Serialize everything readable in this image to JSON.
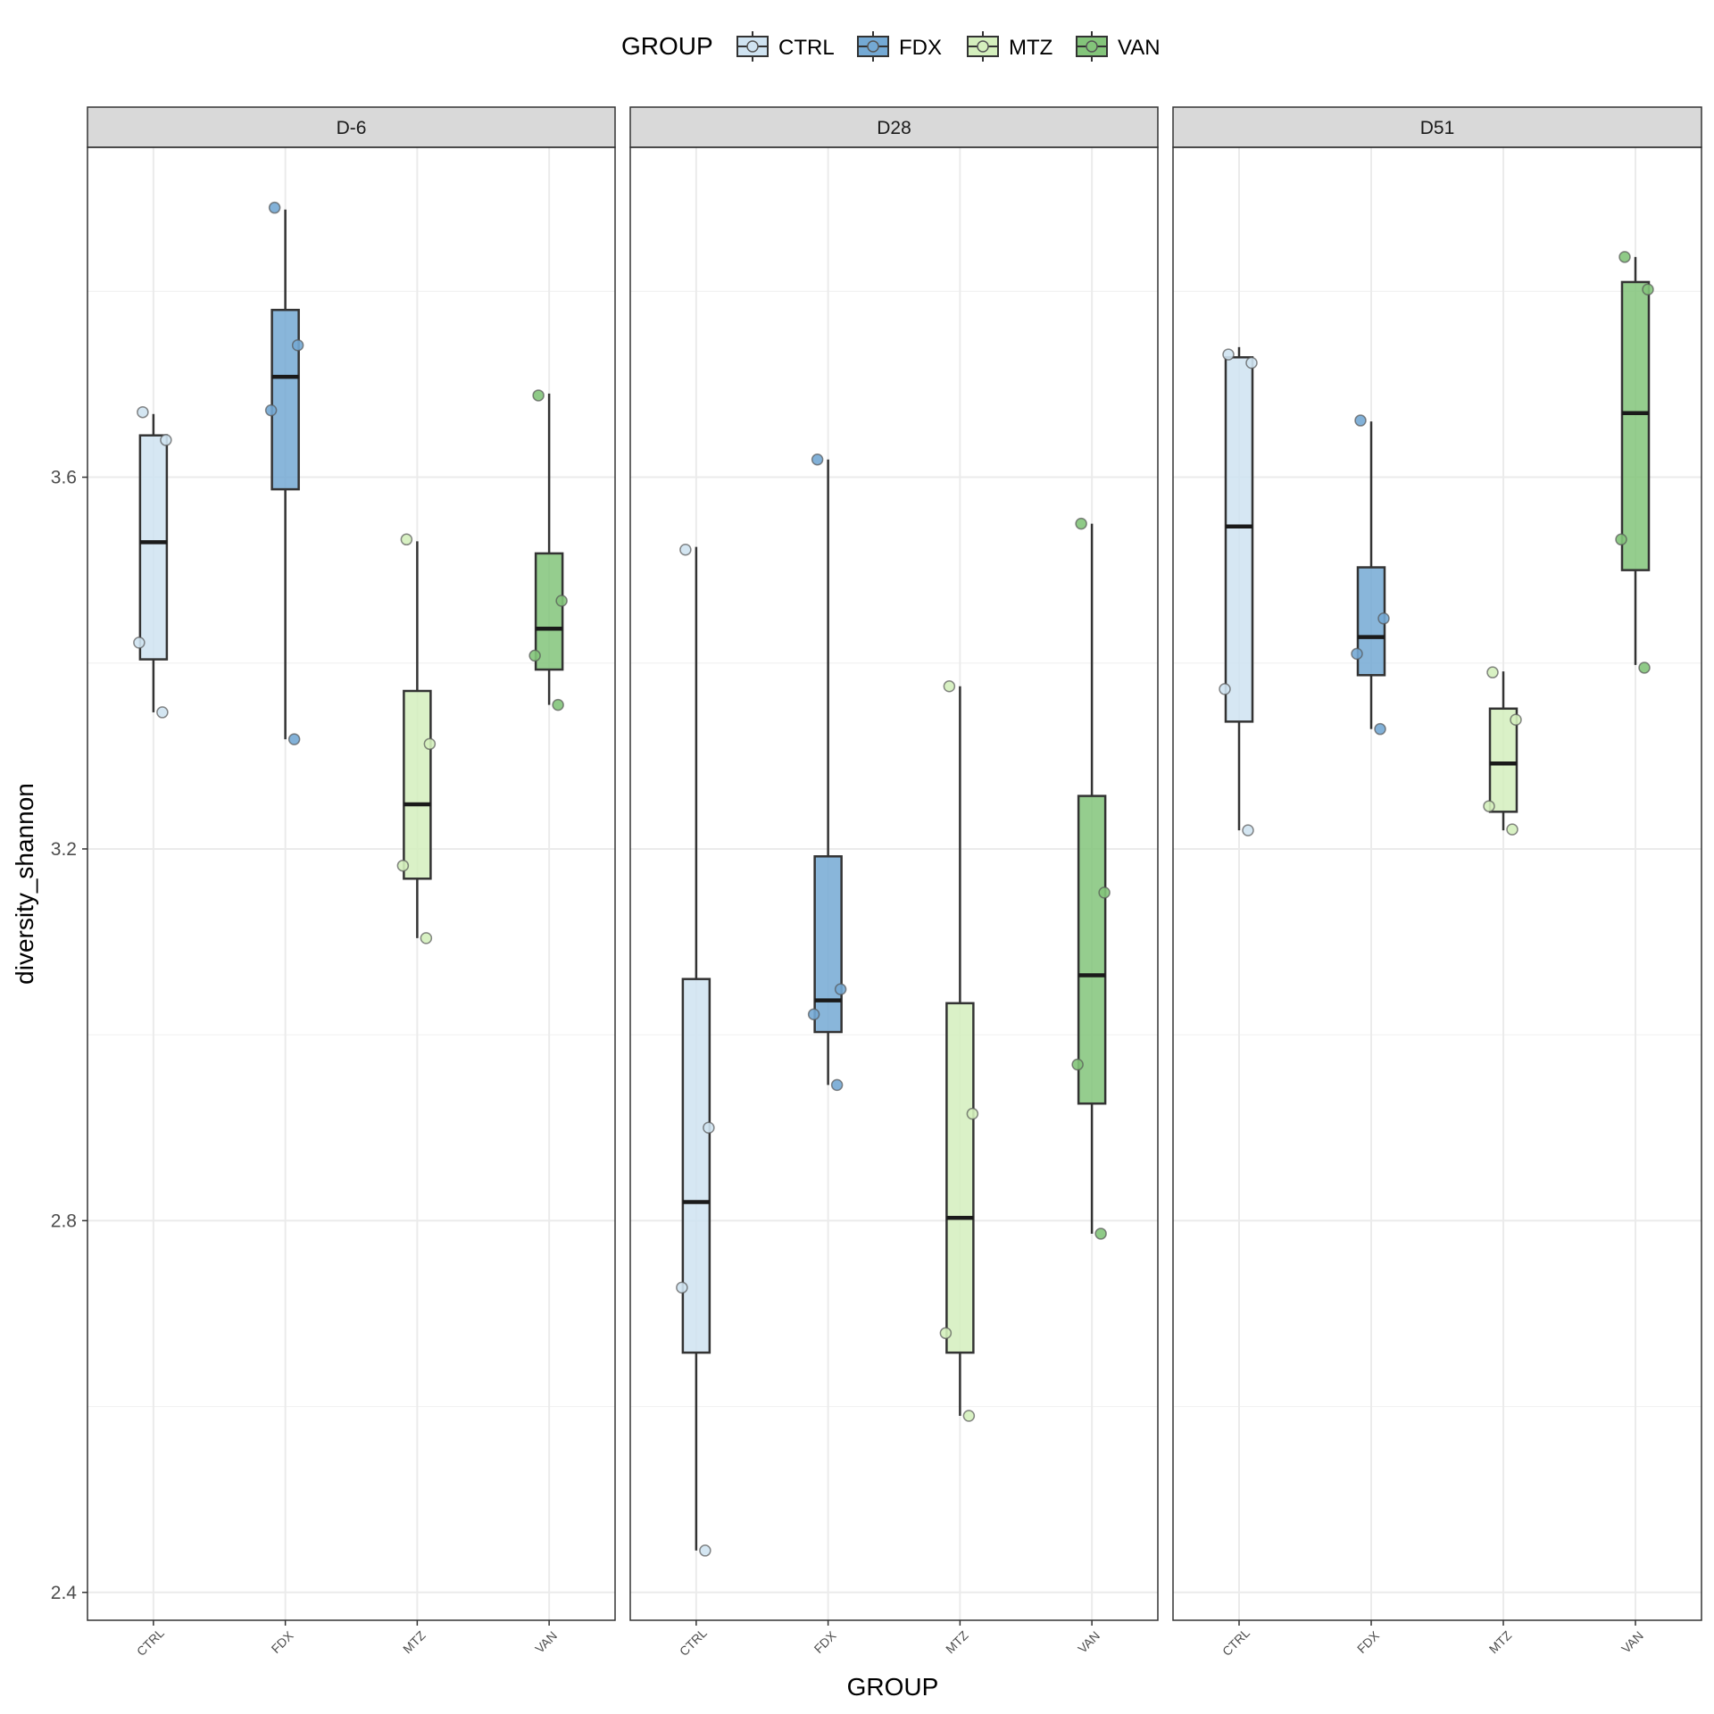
{
  "chart_data": {
    "type": "box",
    "x_title": "GROUP",
    "y_title": "diversity_shannon",
    "legend": {
      "title": "GROUP",
      "position": "top",
      "items": [
        {
          "name": "CTRL",
          "color": "#cfe3f1"
        },
        {
          "name": "FDX",
          "color": "#74a9d4"
        },
        {
          "name": "MTZ",
          "color": "#d4efbd"
        },
        {
          "name": "VAN",
          "color": "#83c47a"
        }
      ]
    },
    "y_axis": {
      "range": [
        2.37,
        3.955
      ],
      "ticks": [
        2.4,
        2.8,
        3.2,
        3.6
      ],
      "tick_labels": [
        "2.4",
        "2.8",
        "3.2",
        "3.6"
      ]
    },
    "categories": [
      "CTRL",
      "FDX",
      "MTZ",
      "VAN"
    ],
    "grid": true,
    "panels": [
      {
        "label": "D-6",
        "boxes": [
          {
            "group": "CTRL",
            "whisker_low": 3.347,
            "q1": 3.404,
            "median": 3.53,
            "q3": 3.645,
            "whisker_high": 3.668,
            "points": [
              3.67,
              3.64,
              3.422,
              3.347
            ]
          },
          {
            "group": "FDX",
            "whisker_low": 3.318,
            "q1": 3.587,
            "median": 3.708,
            "q3": 3.78,
            "whisker_high": 3.888,
            "points": [
              3.89,
              3.742,
              3.672,
              3.318
            ]
          },
          {
            "group": "MTZ",
            "whisker_low": 3.104,
            "q1": 3.168,
            "median": 3.248,
            "q3": 3.37,
            "whisker_high": 3.531,
            "points": [
              3.533,
              3.313,
              3.182,
              3.104
            ]
          },
          {
            "group": "VAN",
            "whisker_low": 3.355,
            "q1": 3.393,
            "median": 3.437,
            "q3": 3.518,
            "whisker_high": 3.69,
            "points": [
              3.688,
              3.467,
              3.408,
              3.355
            ]
          }
        ]
      },
      {
        "label": "D28",
        "boxes": [
          {
            "group": "CTRL",
            "whisker_low": 2.445,
            "q1": 2.658,
            "median": 2.82,
            "q3": 3.06,
            "whisker_high": 3.525,
            "points": [
              3.522,
              2.9,
              2.728,
              2.445
            ]
          },
          {
            "group": "FDX",
            "whisker_low": 2.946,
            "q1": 3.003,
            "median": 3.037,
            "q3": 3.192,
            "whisker_high": 3.619,
            "points": [
              3.619,
              3.049,
              3.022,
              2.946
            ]
          },
          {
            "group": "MTZ",
            "whisker_low": 2.59,
            "q1": 2.658,
            "median": 2.803,
            "q3": 3.034,
            "whisker_high": 3.375,
            "points": [
              3.375,
              2.915,
              2.679,
              2.59
            ]
          },
          {
            "group": "VAN",
            "whisker_low": 2.786,
            "q1": 2.926,
            "median": 3.064,
            "q3": 3.257,
            "whisker_high": 3.55,
            "points": [
              3.55,
              3.153,
              2.968,
              2.786
            ]
          }
        ]
      },
      {
        "label": "D51",
        "boxes": [
          {
            "group": "CTRL",
            "whisker_low": 3.22,
            "q1": 3.337,
            "median": 3.547,
            "q3": 3.729,
            "whisker_high": 3.74,
            "points": [
              3.732,
              3.723,
              3.372,
              3.22
            ]
          },
          {
            "group": "FDX",
            "whisker_low": 3.329,
            "q1": 3.387,
            "median": 3.428,
            "q3": 3.503,
            "whisker_high": 3.66,
            "points": [
              3.661,
              3.448,
              3.41,
              3.329
            ]
          },
          {
            "group": "MTZ",
            "whisker_low": 3.22,
            "q1": 3.24,
            "median": 3.292,
            "q3": 3.351,
            "whisker_high": 3.391,
            "points": [
              3.39,
              3.339,
              3.246,
              3.221
            ]
          },
          {
            "group": "VAN",
            "whisker_low": 3.398,
            "q1": 3.5,
            "median": 3.669,
            "q3": 3.81,
            "whisker_high": 3.837,
            "points": [
              3.837,
              3.802,
              3.533,
              3.395
            ]
          }
        ]
      }
    ]
  }
}
